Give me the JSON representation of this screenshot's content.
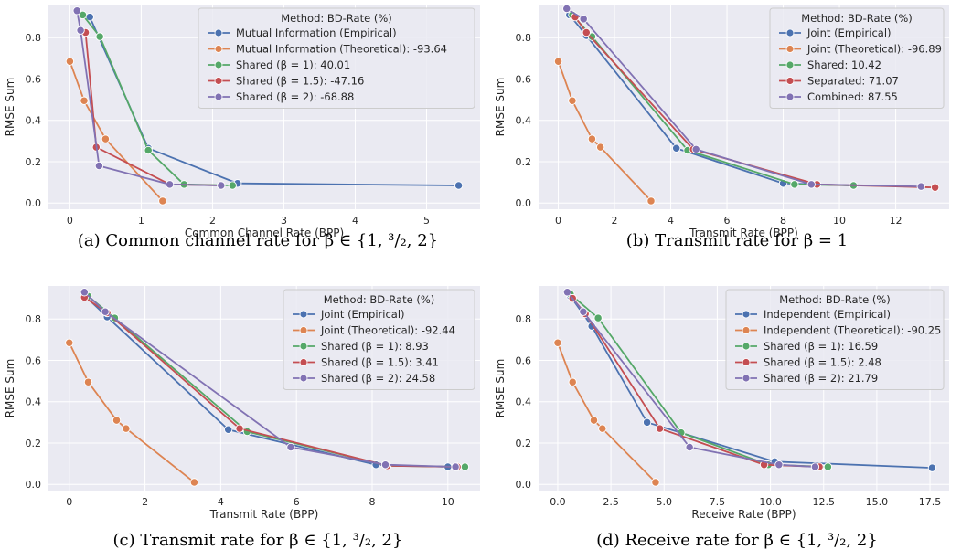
{
  "colors": {
    "blue": "#4c72b0",
    "orange": "#dd8452",
    "green": "#55a868",
    "red": "#c44e52",
    "purple": "#8172b3",
    "panel_bg": "#eaeaf2",
    "grid": "#ffffff"
  },
  "chart_data": [
    {
      "type": "line",
      "caption": "(a) Common channel rate for β ∈ {1, ³/₂, 2}",
      "xlabel": "Common Channel Rate (BPP)",
      "ylabel": "RMSE Sum",
      "xlim": [
        -0.3,
        5.75
      ],
      "ylim": [
        -0.03,
        0.96
      ],
      "xticks": [
        0,
        1,
        2,
        3,
        4,
        5
      ],
      "yticks": [
        0.0,
        0.2,
        0.4,
        0.6,
        0.8
      ],
      "legend_title": "Method: BD-Rate (%)",
      "legend_position": "top-right",
      "series": [
        {
          "name": "Mutual Information (Empirical)",
          "color": "blue",
          "x": [
            0.28,
            1.1,
            2.35,
            5.45
          ],
          "y": [
            0.9,
            0.265,
            0.095,
            0.085
          ]
        },
        {
          "name": "Mutual Information (Theoretical): -93.64",
          "color": "orange",
          "x": [
            0.0,
            0.2,
            0.5,
            1.3
          ],
          "y": [
            0.685,
            0.495,
            0.31,
            0.01
          ]
        },
        {
          "name": "Shared (β = 1): 40.01",
          "color": "green",
          "x": [
            0.18,
            0.42,
            1.1,
            1.6,
            2.28
          ],
          "y": [
            0.91,
            0.805,
            0.255,
            0.09,
            0.085
          ]
        },
        {
          "name": "Shared (β = 1.5): -47.16",
          "color": "red",
          "x": [
            0.22,
            0.37,
            1.4,
            2.12
          ],
          "y": [
            0.825,
            0.27,
            0.09,
            0.085
          ]
        },
        {
          "name": "Shared (β = 2): -68.88",
          "color": "purple",
          "x": [
            0.1,
            0.15,
            0.41,
            1.4,
            2.12
          ],
          "y": [
            0.93,
            0.835,
            0.18,
            0.09,
            0.085
          ]
        }
      ]
    },
    {
      "type": "line",
      "caption": "(b) Transmit rate for β = 1",
      "xlabel": "Transmit Rate (BPP)",
      "ylabel": "RMSE Sum",
      "xlim": [
        -0.7,
        13.9
      ],
      "ylim": [
        -0.03,
        0.96
      ],
      "xticks": [
        0,
        2,
        4,
        6,
        8,
        10,
        12
      ],
      "yticks": [
        0.0,
        0.2,
        0.4,
        0.6,
        0.8
      ],
      "legend_title": "Method: BD-Rate (%)",
      "legend_position": "top-right",
      "series": [
        {
          "name": "Joint (Empirical)",
          "color": "blue",
          "x": [
            0.4,
            1.0,
            4.2,
            8.0,
            10.5
          ],
          "y": [
            0.91,
            0.81,
            0.265,
            0.095,
            0.085
          ]
        },
        {
          "name": "Joint (Theoretical): -96.89",
          "color": "orange",
          "x": [
            0.0,
            0.5,
            1.2,
            1.5,
            3.3
          ],
          "y": [
            0.685,
            0.495,
            0.31,
            0.27,
            0.01
          ]
        },
        {
          "name": "Shared: 10.42",
          "color": "green",
          "x": [
            0.5,
            1.2,
            4.6,
            8.4,
            10.5
          ],
          "y": [
            0.91,
            0.805,
            0.255,
            0.09,
            0.085
          ]
        },
        {
          "name": "Separated: 71.07",
          "color": "red",
          "x": [
            0.6,
            1.0,
            4.8,
            9.2,
            13.4
          ],
          "y": [
            0.9,
            0.825,
            0.26,
            0.09,
            0.075
          ]
        },
        {
          "name": "Combined: 87.55",
          "color": "purple",
          "x": [
            0.3,
            0.9,
            4.9,
            9.0,
            12.9
          ],
          "y": [
            0.94,
            0.89,
            0.26,
            0.09,
            0.08
          ]
        }
      ]
    },
    {
      "type": "line",
      "caption": "(c) Transmit rate for β ∈ {1, ³/₂, 2}",
      "xlabel": "Transmit Rate (BPP)",
      "ylabel": "RMSE Sum",
      "xlim": [
        -0.55,
        10.85
      ],
      "ylim": [
        -0.03,
        0.96
      ],
      "xticks": [
        0,
        2,
        4,
        6,
        8,
        10
      ],
      "yticks": [
        0.0,
        0.2,
        0.4,
        0.6,
        0.8
      ],
      "legend_title": "Method: BD-Rate (%)",
      "legend_position": "top-right",
      "series": [
        {
          "name": "Joint (Empirical)",
          "color": "blue",
          "x": [
            0.45,
            1.0,
            4.2,
            8.1,
            10.0
          ],
          "y": [
            0.905,
            0.81,
            0.265,
            0.095,
            0.085
          ]
        },
        {
          "name": "Joint (Theoretical): -92.44",
          "color": "orange",
          "x": [
            0.0,
            0.5,
            1.25,
            1.5,
            3.3
          ],
          "y": [
            0.685,
            0.495,
            0.31,
            0.27,
            0.01
          ]
        },
        {
          "name": "Shared (β = 1): 8.93",
          "color": "green",
          "x": [
            0.5,
            1.2,
            4.7,
            8.4,
            10.45
          ],
          "y": [
            0.91,
            0.805,
            0.255,
            0.09,
            0.085
          ]
        },
        {
          "name": "Shared (β = 1.5): 3.41",
          "color": "red",
          "x": [
            0.4,
            1.0,
            4.5,
            8.4,
            10.25
          ],
          "y": [
            0.905,
            0.83,
            0.27,
            0.09,
            0.085
          ]
        },
        {
          "name": "Shared (β = 2): 24.58",
          "color": "purple",
          "x": [
            0.4,
            0.95,
            5.85,
            8.35,
            10.2
          ],
          "y": [
            0.93,
            0.835,
            0.18,
            0.095,
            0.085
          ]
        }
      ]
    },
    {
      "type": "line",
      "caption": "(d) Receive rate for β ∈ {1, ³/₂, 2}",
      "xlabel": "Receive Rate (BPP)",
      "ylabel": "RMSE Sum",
      "xlim": [
        -0.9,
        18.4
      ],
      "ylim": [
        -0.03,
        0.96
      ],
      "xticks": [
        0.0,
        2.5,
        5.0,
        7.5,
        10.0,
        12.5,
        15.0,
        17.5
      ],
      "yticks": [
        0.0,
        0.2,
        0.4,
        0.6,
        0.8
      ],
      "legend_title": "Method: BD-Rate (%)",
      "legend_position": "top-right",
      "series": [
        {
          "name": "Independent (Empirical)",
          "color": "blue",
          "x": [
            0.6,
            1.6,
            4.2,
            10.2,
            17.6
          ],
          "y": [
            0.91,
            0.765,
            0.3,
            0.11,
            0.08
          ]
        },
        {
          "name": "Independent (Theoretical): -90.25",
          "color": "orange",
          "x": [
            0.0,
            0.7,
            1.7,
            2.1,
            4.6
          ],
          "y": [
            0.685,
            0.495,
            0.31,
            0.27,
            0.01
          ]
        },
        {
          "name": "Shared (β = 1): 16.59",
          "color": "green",
          "x": [
            0.6,
            1.9,
            5.8,
            9.9,
            12.7
          ],
          "y": [
            0.92,
            0.805,
            0.25,
            0.095,
            0.085
          ]
        },
        {
          "name": "Shared (β = 1.5): 2.48",
          "color": "red",
          "x": [
            0.7,
            1.3,
            4.8,
            9.7,
            12.3
          ],
          "y": [
            0.9,
            0.825,
            0.27,
            0.095,
            0.085
          ]
        },
        {
          "name": "Shared (β = 2): 21.79",
          "color": "purple",
          "x": [
            0.45,
            1.2,
            6.2,
            10.4,
            12.1
          ],
          "y": [
            0.93,
            0.835,
            0.18,
            0.095,
            0.085
          ]
        }
      ]
    }
  ]
}
